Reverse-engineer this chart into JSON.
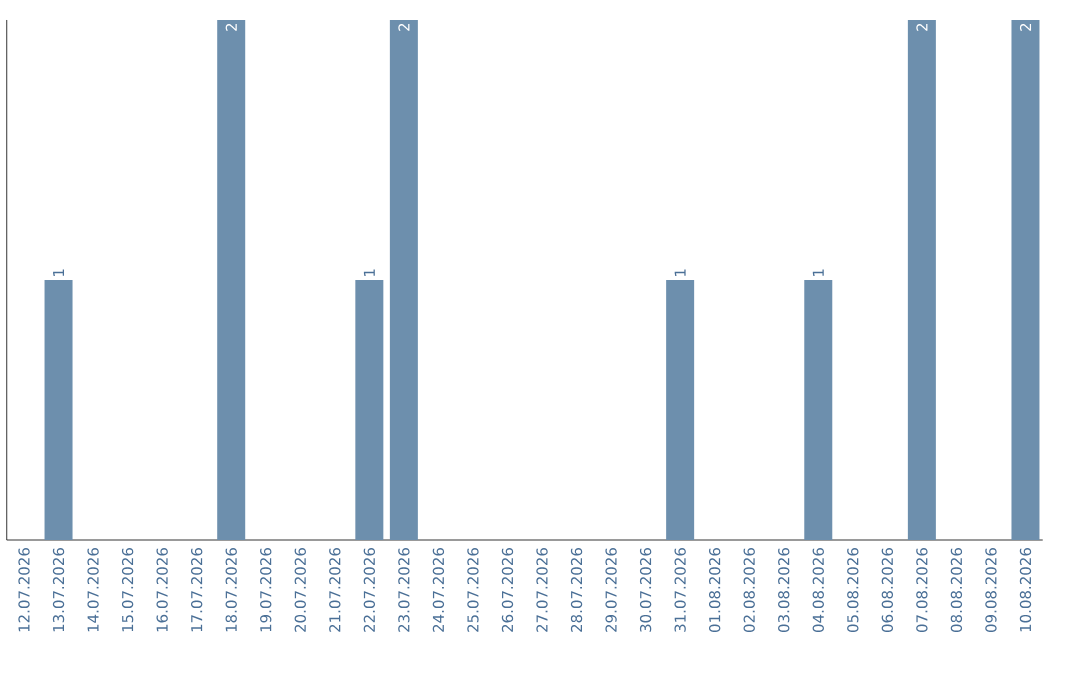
{
  "chart_data": {
    "type": "bar",
    "categories": [
      "12.07.2026",
      "13.07.2026",
      "14.07.2026",
      "15.07.2026",
      "16.07.2026",
      "17.07.2026",
      "18.07.2026",
      "19.07.2026",
      "20.07.2026",
      "21.07.2026",
      "22.07.2026",
      "23.07.2026",
      "24.07.2026",
      "25.07.2026",
      "26.07.2026",
      "27.07.2026",
      "28.07.2026",
      "29.07.2026",
      "30.07.2026",
      "31.07.2026",
      "01.08.2026",
      "02.08.2026",
      "03.08.2026",
      "04.08.2026",
      "05.08.2026",
      "06.08.2026",
      "07.08.2026",
      "08.08.2026",
      "09.08.2026",
      "10.08.2026"
    ],
    "values": [
      0,
      1,
      0,
      0,
      0,
      0,
      2,
      0,
      0,
      0,
      1,
      2,
      0,
      0,
      0,
      0,
      0,
      0,
      0,
      1,
      0,
      0,
      0,
      1,
      0,
      0,
      2,
      0,
      0,
      2
    ],
    "value_labels": [
      null,
      "1",
      null,
      null,
      null,
      null,
      "2",
      null,
      null,
      null,
      "1",
      "2",
      null,
      null,
      null,
      null,
      null,
      null,
      null,
      "1",
      null,
      null,
      null,
      "1",
      null,
      null,
      "2",
      null,
      null,
      "2"
    ],
    "color": "#6d8fad",
    "ylim": [
      0,
      2
    ],
    "tick_labels": "x"
  }
}
